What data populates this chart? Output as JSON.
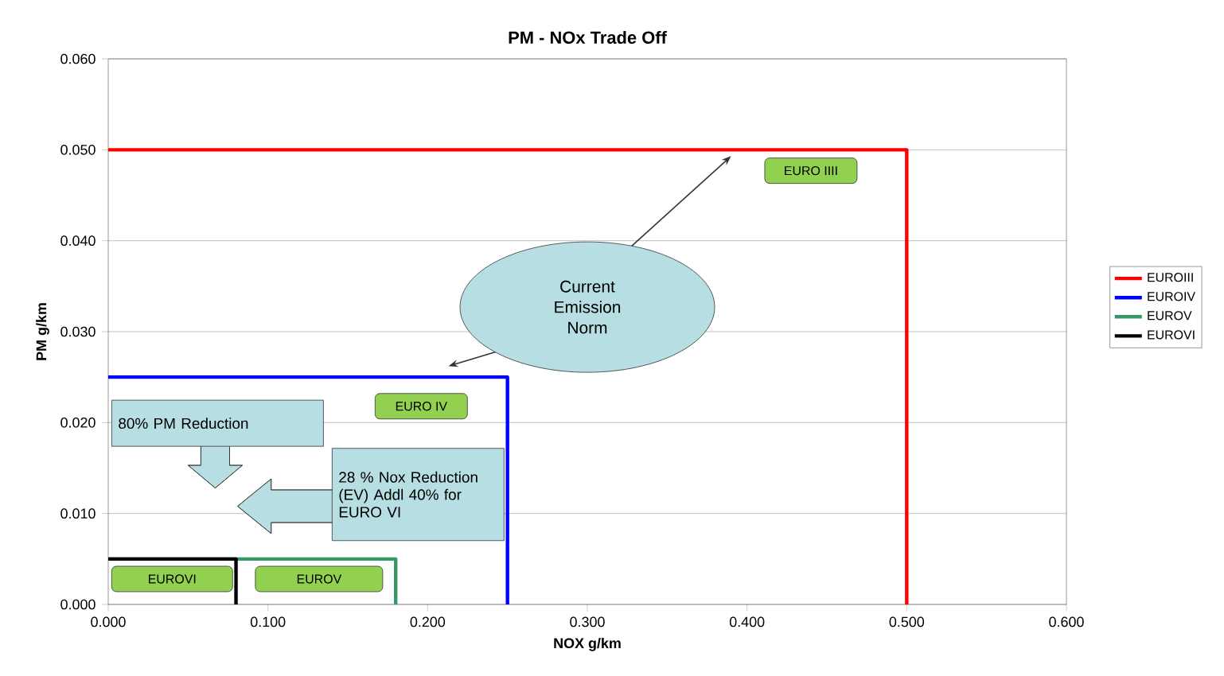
{
  "chart_data": {
    "type": "line",
    "title": "PM - NOx Trade Off",
    "xlabel": "NOX g/km",
    "ylabel": "PM g/km",
    "series": [
      {
        "name": "EUROIII",
        "color": "#ff0000",
        "x": [
          0,
          0.5,
          0.5
        ],
        "values": [
          0.05,
          0.05,
          0
        ]
      },
      {
        "name": "EUROIV",
        "color": "#0000ff",
        "x": [
          0,
          0.25,
          0.25
        ],
        "values": [
          0.025,
          0.025,
          0
        ]
      },
      {
        "name": "EUROV",
        "color": "#339966",
        "x": [
          0,
          0.18,
          0.18
        ],
        "values": [
          0.005,
          0.005,
          0
        ]
      },
      {
        "name": "EUROVI",
        "color": "#000000",
        "x": [
          0,
          0.08,
          0.08
        ],
        "values": [
          0.005,
          0.005,
          0
        ]
      }
    ],
    "xlim": [
      0,
      0.6
    ],
    "ylim": [
      0,
      0.06
    ],
    "xticks": [
      {
        "value": 0,
        "label": "0.000"
      },
      {
        "value": 0.1,
        "label": "0.100"
      },
      {
        "value": 0.2,
        "label": "0.200"
      },
      {
        "value": 0.3,
        "label": "0.300"
      },
      {
        "value": 0.4,
        "label": "0.400"
      },
      {
        "value": 0.5,
        "label": "0.500"
      },
      {
        "value": 0.6,
        "label": "0.600"
      }
    ],
    "yticks": [
      {
        "value": 0,
        "label": "0.000"
      },
      {
        "value": 0.01,
        "label": "0.010"
      },
      {
        "value": 0.02,
        "label": "0.020"
      },
      {
        "value": 0.03,
        "label": "0.030"
      },
      {
        "value": 0.04,
        "label": "0.040"
      },
      {
        "value": 0.05,
        "label": "0.050"
      },
      {
        "value": 0.06,
        "label": "0.060"
      }
    ],
    "grid": "y",
    "legend": "right",
    "marker": "none",
    "line_style": "solid",
    "annotations": [
      "EURO  IIII",
      "Current Emission Norm",
      "EURO  IV",
      "80% PM Reduction",
      "28 % Nox Reduction (EV) Addl 40% for EURO VI",
      "EUROVI",
      "EUROV"
    ]
  }
}
